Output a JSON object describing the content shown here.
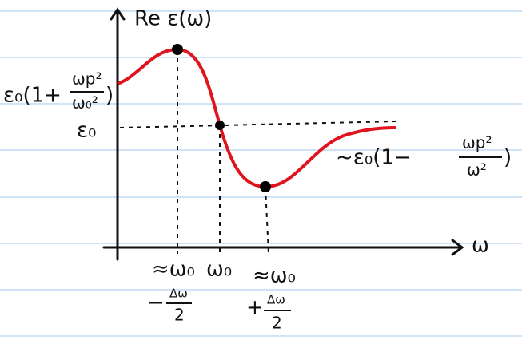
{
  "axes": {
    "y_label": "Re ε(ω)",
    "x_label": "ω"
  },
  "y_marks": {
    "upper": {
      "prefix": "ε₀(1+",
      "numerator": "ωp²",
      "denominator": "ω₀²",
      "suffix": ")"
    },
    "base": "ε₀"
  },
  "asymptote": {
    "prefix": "~ε₀(1−",
    "numerator": "ωp²",
    "denominator": "ω²",
    "suffix": ")"
  },
  "x_marks": [
    {
      "line1": "≈ω₀",
      "sign": "−",
      "numerator": "Δω",
      "denominator": "2"
    },
    {
      "line1": "ω₀"
    },
    {
      "line1": "≈ω₀",
      "sign": "+",
      "numerator": "Δω",
      "denominator": "2"
    }
  ]
}
